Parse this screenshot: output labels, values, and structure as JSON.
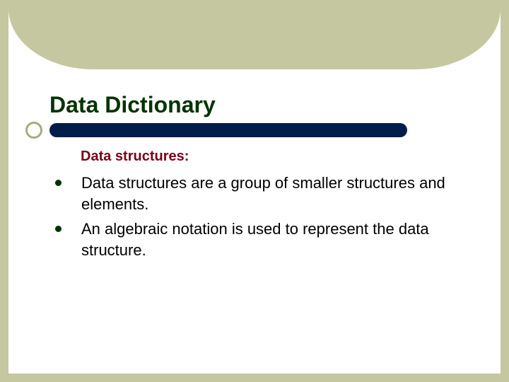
{
  "slide": {
    "title": "Data Dictionary",
    "title_color": "#003300",
    "title_fontsize": 32,
    "subheading": "Data structures:",
    "subheading_color": "#7a0019",
    "subheading_fontsize": 20,
    "bullets": [
      "Data structures are a group of smaller structures and elements.",
      "An algebraic notation is used to represent the data structure."
    ],
    "bullet_color": "#003300",
    "bullet_text_color": "#000000",
    "bullet_fontsize": 22,
    "background_color": "#c4c7a0",
    "slide_background": "#ffffff",
    "underline_color": "#001d4a",
    "underline_ring_color": "#a8ab7e"
  }
}
